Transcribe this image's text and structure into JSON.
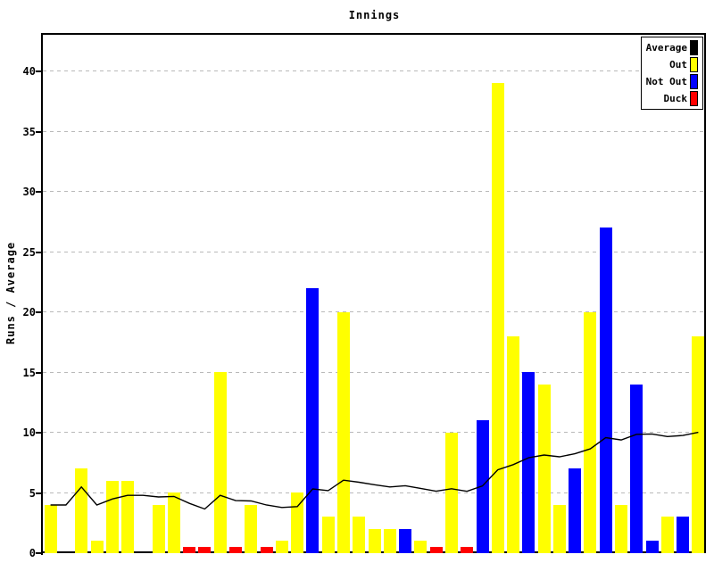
{
  "chart": {
    "title": "Innings",
    "y_axis_title": "Runs / Average"
  },
  "chart_data": {
    "type": "bar",
    "title": "Innings",
    "xlabel": "",
    "ylabel": "Runs / Average",
    "ylim": [
      0,
      43.2
    ],
    "yticks": [
      0,
      5,
      10,
      15,
      20,
      25,
      30,
      35,
      40
    ],
    "x_tick_labels": "none",
    "grid": "horizontal-dashed",
    "legend_position": "top-right",
    "colors": {
      "average": "#000000",
      "out": "#ffff00",
      "not_out": "#0000ff",
      "duck": "#ff0000",
      "grid": "#b9b9b9",
      "background": "#ffffff"
    },
    "legend": [
      {
        "label": "Average",
        "key": "average"
      },
      {
        "label": "Out",
        "key": "out"
      },
      {
        "label": "Not Out",
        "key": "not_out"
      },
      {
        "label": "Duck",
        "key": "duck"
      }
    ],
    "bars": [
      {
        "innings": 1,
        "type": "out",
        "runs": 4
      },
      {
        "innings": 2,
        "type": null,
        "runs": null
      },
      {
        "innings": 3,
        "type": "out",
        "runs": 7
      },
      {
        "innings": 4,
        "type": "out",
        "runs": 1
      },
      {
        "innings": 5,
        "type": "out",
        "runs": 6
      },
      {
        "innings": 6,
        "type": "out",
        "runs": 6
      },
      {
        "innings": 7,
        "type": null,
        "runs": null
      },
      {
        "innings": 8,
        "type": "out",
        "runs": 4
      },
      {
        "innings": 9,
        "type": "out",
        "runs": 5
      },
      {
        "innings": 10,
        "type": "duck",
        "runs": 0
      },
      {
        "innings": 11,
        "type": "duck",
        "runs": 0
      },
      {
        "innings": 12,
        "type": "out",
        "runs": 15
      },
      {
        "innings": 13,
        "type": "duck",
        "runs": 0
      },
      {
        "innings": 14,
        "type": "out",
        "runs": 4
      },
      {
        "innings": 15,
        "type": "duck",
        "runs": 0
      },
      {
        "innings": 16,
        "type": "out",
        "runs": 1
      },
      {
        "innings": 17,
        "type": "out",
        "runs": 5
      },
      {
        "innings": 18,
        "type": "not_out",
        "runs": 22
      },
      {
        "innings": 19,
        "type": "out",
        "runs": 3
      },
      {
        "innings": 20,
        "type": "out",
        "runs": 20
      },
      {
        "innings": 21,
        "type": "out",
        "runs": 3
      },
      {
        "innings": 22,
        "type": "out",
        "runs": 2
      },
      {
        "innings": 23,
        "type": "out",
        "runs": 2
      },
      {
        "innings": 24,
        "type": "not_out",
        "runs": 2
      },
      {
        "innings": 25,
        "type": "out",
        "runs": 1
      },
      {
        "innings": 26,
        "type": "duck",
        "runs": 0
      },
      {
        "innings": 27,
        "type": "out",
        "runs": 10
      },
      {
        "innings": 28,
        "type": "duck",
        "runs": 0
      },
      {
        "innings": 29,
        "type": "not_out",
        "runs": 11
      },
      {
        "innings": 30,
        "type": "out",
        "runs": 39
      },
      {
        "innings": 31,
        "type": "out",
        "runs": 18
      },
      {
        "innings": 32,
        "type": "not_out",
        "runs": 15
      },
      {
        "innings": 33,
        "type": "out",
        "runs": 14
      },
      {
        "innings": 34,
        "type": "out",
        "runs": 4
      },
      {
        "innings": 35,
        "type": "not_out",
        "runs": 7
      },
      {
        "innings": 36,
        "type": "out",
        "runs": 20
      },
      {
        "innings": 37,
        "type": "not_out",
        "runs": 27
      },
      {
        "innings": 38,
        "type": "out",
        "runs": 4
      },
      {
        "innings": 39,
        "type": "not_out",
        "runs": 14
      },
      {
        "innings": 40,
        "type": "not_out",
        "runs": 1
      },
      {
        "innings": 41,
        "type": "out",
        "runs": 3
      },
      {
        "innings": 42,
        "type": "not_out",
        "runs": 3
      },
      {
        "innings": 43,
        "type": "out",
        "runs": 18
      }
    ],
    "average_series": [
      4.0,
      4.0,
      5.5,
      4.0,
      4.5,
      4.8,
      4.8,
      4.67,
      4.71,
      4.13,
      3.67,
      4.8,
      4.36,
      4.33,
      4.0,
      3.79,
      3.87,
      5.33,
      5.19,
      6.06,
      5.89,
      5.68,
      5.5,
      5.6,
      5.38,
      5.14,
      5.35,
      5.13,
      5.58,
      6.92,
      7.35,
      7.92,
      8.15,
      8.0,
      8.25,
      8.66,
      9.59,
      9.4,
      9.87,
      9.9,
      9.68,
      9.77,
      10.03
    ]
  }
}
